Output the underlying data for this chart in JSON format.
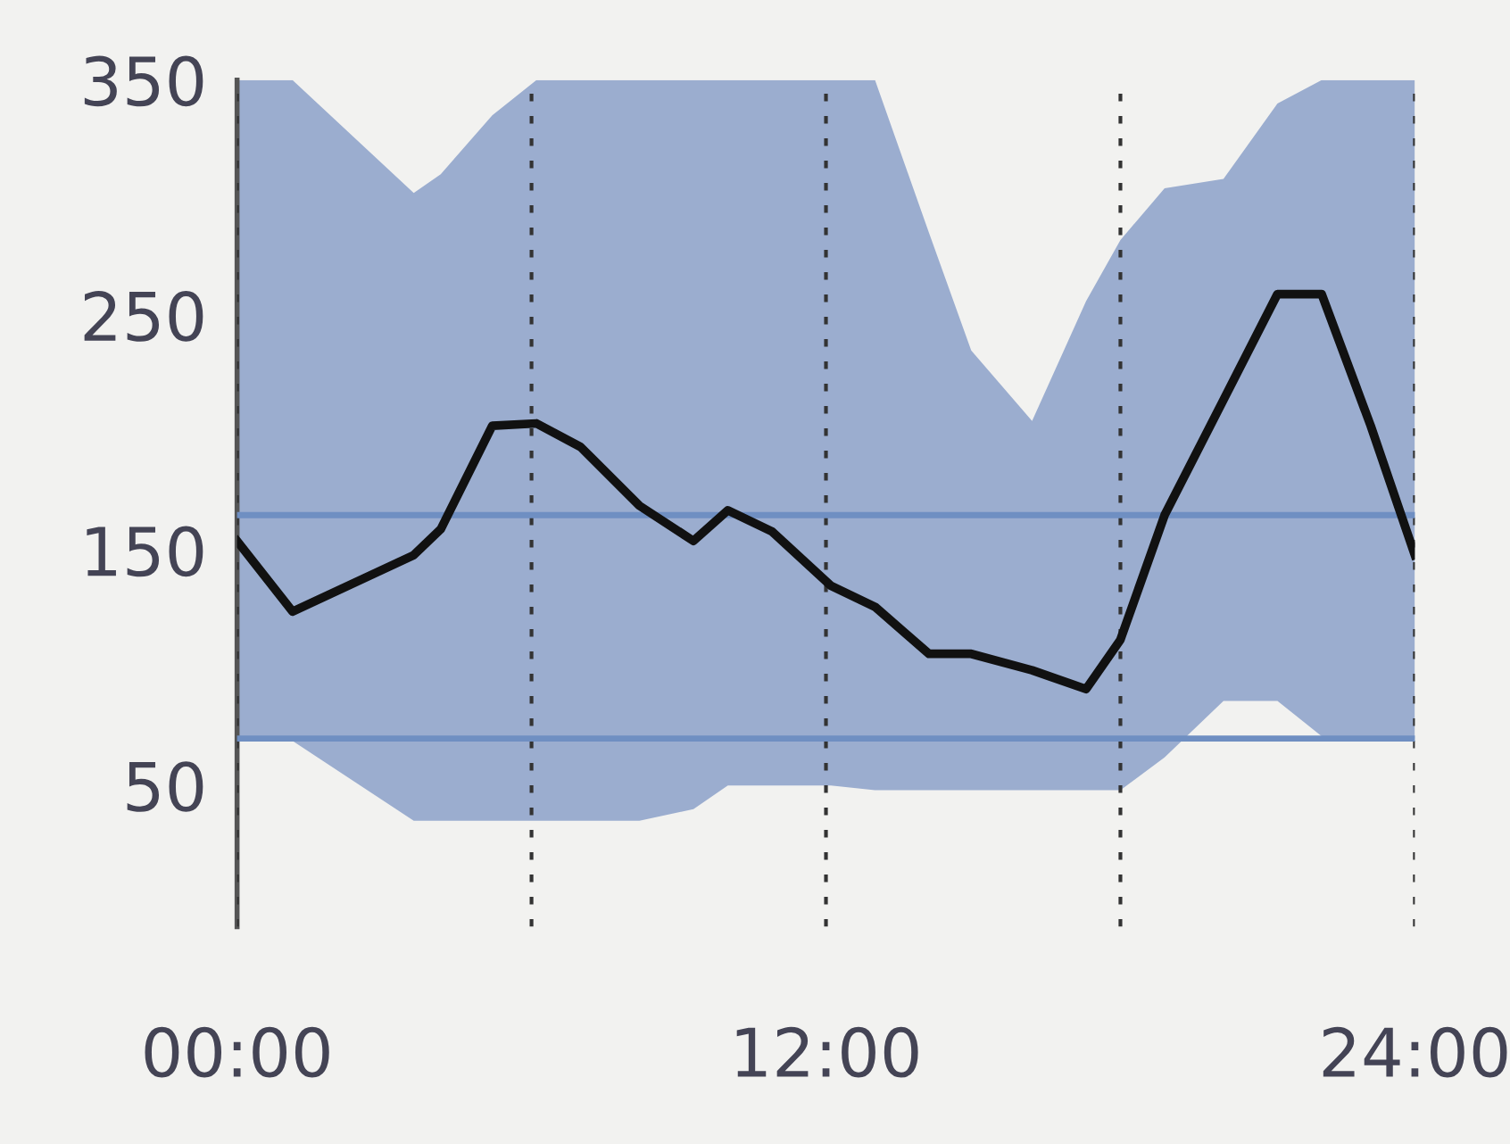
{
  "chart_data": {
    "type": "line",
    "x": [
      0,
      1.13,
      3.6,
      4.15,
      5.2,
      6.1,
      7.0,
      8.2,
      9.3,
      10.0,
      10.9,
      12.1,
      13.0,
      14.1,
      14.96,
      16.2,
      17.3,
      18.0,
      18.9,
      20.1,
      21.2,
      22.1,
      23.1,
      24
    ],
    "series": [
      {
        "color": "#111111",
        "values": [
          154,
          124,
          148,
          159,
          203,
          204,
          194,
          169,
          154,
          167,
          158,
          135,
          126,
          106,
          106,
          99,
          91,
          112,
          165,
          214,
          259,
          259,
          203,
          148
        ],
        "upper": [
          350,
          350,
          302,
          310,
          335,
          350,
          350,
          350,
          350,
          350,
          350,
          350,
          350,
          285,
          235,
          205,
          256,
          282,
          304,
          308,
          340,
          350,
          350,
          350
        ],
        "lower": [
          69,
          69,
          35,
          35,
          35,
          35,
          35,
          35,
          40,
          50,
          50,
          50,
          48,
          48,
          48,
          48,
          48,
          48,
          62,
          86,
          86,
          71,
          70,
          70
        ]
      }
    ],
    "xlim": [
      0,
      24
    ],
    "xticks": [
      {
        "value": 0,
        "label": "00:00"
      },
      {
        "value": 6,
        "label": null
      },
      {
        "value": 12,
        "label": "12:00"
      },
      {
        "value": 18,
        "label": null
      },
      {
        "value": 24,
        "label": "24:00"
      }
    ],
    "ylim": [
      -10,
      350
    ],
    "yticks": [
      50,
      150,
      250,
      350
    ],
    "ref_lines": [
      {
        "axis": "y",
        "value": 165,
        "color": "#6f8fc2"
      },
      {
        "axis": "y",
        "value": 70,
        "color": "#6f8fc2"
      }
    ],
    "grid": "x",
    "line_style": "solid",
    "marker": "none",
    "legend": false
  }
}
